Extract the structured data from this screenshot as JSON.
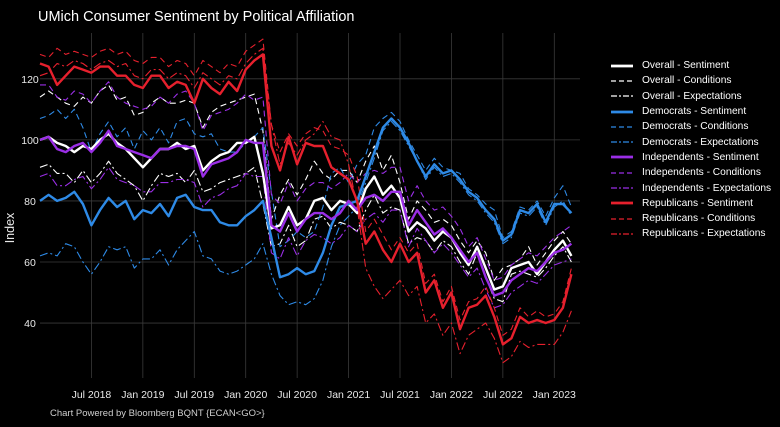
{
  "title": "UMich Consumer Sentiment by Political Affiliation",
  "footer": "Chart Powered by Bloomberg BQNT     {ECAN<GO>}",
  "chart_data": {
    "type": "line",
    "ylabel": "Index",
    "xlabel": "",
    "x_ticks": [
      "Jul 2018",
      "Jan 2019",
      "Jul 2019",
      "Jan 2020",
      "Jul 2020",
      "Jan 2021",
      "Jul 2021",
      "Jan 2022",
      "Jul 2022",
      "Jan 2023"
    ],
    "y_ticks": [
      40,
      60,
      80,
      100,
      120
    ],
    "ylim": [
      22,
      135
    ],
    "xlim": [
      "2018-01",
      "2023-04"
    ],
    "grid": true,
    "legend_position": "right",
    "x": [
      "2018-01",
      "2018-02",
      "2018-03",
      "2018-04",
      "2018-05",
      "2018-06",
      "2018-07",
      "2018-08",
      "2018-09",
      "2018-10",
      "2018-11",
      "2018-12",
      "2019-01",
      "2019-02",
      "2019-03",
      "2019-04",
      "2019-05",
      "2019-06",
      "2019-07",
      "2019-08",
      "2019-09",
      "2019-10",
      "2019-11",
      "2019-12",
      "2020-01",
      "2020-02",
      "2020-03",
      "2020-04",
      "2020-05",
      "2020-06",
      "2020-07",
      "2020-08",
      "2020-09",
      "2020-10",
      "2020-11",
      "2020-12",
      "2021-01",
      "2021-02",
      "2021-03",
      "2021-04",
      "2021-05",
      "2021-06",
      "2021-07",
      "2021-08",
      "2021-09",
      "2021-10",
      "2021-11",
      "2021-12",
      "2022-01",
      "2022-02",
      "2022-03",
      "2022-04",
      "2022-05",
      "2022-06",
      "2022-07",
      "2022-08",
      "2022-09",
      "2022-10",
      "2022-11",
      "2022-12",
      "2023-01",
      "2023-02",
      "2023-03"
    ],
    "series": [
      {
        "name": "Overall - Sentiment",
        "color": "#ffffff",
        "dash": "solid",
        "width": 2.4,
        "values": [
          100,
          101,
          99,
          98,
          96,
          98,
          97,
          100,
          102,
          99,
          97,
          94,
          91,
          94,
          97,
          97,
          99,
          97,
          98,
          90,
          93,
          95,
          96,
          99,
          99,
          101,
          89,
          71,
          72,
          78,
          72,
          74,
          80,
          81,
          77,
          80,
          79,
          76,
          84,
          88,
          82,
          85,
          81,
          70,
          73,
          71,
          67,
          70,
          68,
          63,
          59,
          65,
          58,
          51,
          52,
          58,
          59,
          60,
          56,
          60,
          64,
          67,
          62
        ]
      },
      {
        "name": "Overall - Conditions",
        "color": "#ffffff",
        "dash": "6,4",
        "width": 1.1,
        "values": [
          114,
          116,
          114,
          112,
          111,
          114,
          112,
          116,
          118,
          113,
          114,
          108,
          109,
          112,
          114,
          112,
          112,
          113,
          112,
          104,
          109,
          111,
          112,
          113,
          114,
          115,
          103,
          74,
          82,
          87,
          82,
          87,
          93,
          89,
          87,
          90,
          90,
          86,
          93,
          98,
          90,
          95,
          86,
          74,
          80,
          77,
          73,
          74,
          72,
          67,
          63,
          67,
          63,
          54,
          58,
          59,
          61,
          65,
          59,
          63,
          67,
          70,
          66
        ]
      },
      {
        "name": "Overall - Expectations",
        "color": "#ffffff",
        "dash": "8,3,2,3",
        "width": 1.1,
        "values": [
          91,
          92,
          89,
          89,
          86,
          90,
          86,
          89,
          93,
          89,
          87,
          85,
          80,
          85,
          89,
          88,
          89,
          86,
          90,
          83,
          84,
          86,
          87,
          88,
          89,
          91,
          79,
          65,
          66,
          72,
          65,
          67,
          74,
          75,
          71,
          73,
          72,
          70,
          77,
          82,
          76,
          78,
          77,
          66,
          68,
          67,
          63,
          67,
          65,
          60,
          56,
          63,
          55,
          48,
          47,
          56,
          57,
          56,
          55,
          58,
          62,
          65,
          60
        ]
      },
      {
        "name": "Democrats - Sentiment",
        "color": "#2e8ae6",
        "dash": "solid",
        "width": 2.4,
        "values": [
          80,
          82,
          80,
          81,
          83,
          79,
          72,
          77,
          81,
          78,
          80,
          74,
          77,
          76,
          79,
          75,
          81,
          82,
          78,
          77,
          77,
          73,
          72,
          72,
          75,
          77,
          80,
          68,
          55,
          56,
          58,
          56,
          57,
          63,
          72,
          78,
          79,
          80,
          88,
          96,
          104,
          107,
          104,
          99,
          93,
          88,
          92,
          89,
          90,
          87,
          83,
          81,
          77,
          74,
          67,
          69,
          77,
          76,
          79,
          73,
          79,
          79,
          76
        ]
      },
      {
        "name": "Democrats - Conditions",
        "color": "#2e8ae6",
        "dash": "6,4",
        "width": 1.1,
        "values": [
          107,
          108,
          110,
          107,
          110,
          104,
          96,
          102,
          106,
          101,
          104,
          97,
          103,
          100,
          104,
          99,
          106,
          107,
          102,
          101,
          102,
          97,
          96,
          96,
          99,
          101,
          104,
          83,
          65,
          67,
          70,
          68,
          70,
          78,
          89,
          91,
          86,
          92,
          95,
          104,
          107,
          109,
          106,
          100,
          95,
          90,
          94,
          91,
          90,
          89,
          84,
          82,
          79,
          77,
          68,
          70,
          78,
          77,
          80,
          75,
          81,
          85,
          78
        ]
      },
      {
        "name": "Democrats - Expectations",
        "color": "#2e8ae6",
        "dash": "8,3,2,3",
        "width": 1.1,
        "values": [
          62,
          63,
          62,
          66,
          65,
          60,
          56,
          60,
          65,
          64,
          65,
          58,
          61,
          61,
          64,
          59,
          64,
          67,
          70,
          62,
          61,
          57,
          56,
          57,
          59,
          61,
          66,
          56,
          49,
          46,
          47,
          46,
          48,
          54,
          65,
          72,
          75,
          78,
          86,
          94,
          103,
          106,
          103,
          98,
          93,
          87,
          91,
          88,
          89,
          86,
          82,
          80,
          76,
          73,
          66,
          68,
          76,
          75,
          78,
          72,
          78,
          80,
          75
        ]
      },
      {
        "name": "Independents - Sentiment",
        "color": "#9a2ee6",
        "dash": "solid",
        "width": 2.4,
        "values": [
          100,
          101,
          97,
          96,
          98,
          99,
          96,
          99,
          103,
          98,
          97,
          96,
          95,
          94,
          97,
          97,
          98,
          98,
          97,
          88,
          92,
          93,
          94,
          96,
          100,
          99,
          99,
          72,
          70,
          76,
          70,
          74,
          76,
          76,
          74,
          76,
          80,
          77,
          81,
          82,
          80,
          83,
          83,
          72,
          77,
          73,
          69,
          71,
          68,
          64,
          60,
          63,
          55,
          49,
          50,
          54,
          56,
          58,
          57,
          60,
          63,
          64,
          66
        ]
      },
      {
        "name": "Independents - Conditions",
        "color": "#9a2ee6",
        "dash": "6,4",
        "width": 1.1,
        "values": [
          118,
          118,
          114,
          113,
          116,
          115,
          112,
          116,
          119,
          114,
          112,
          111,
          110,
          111,
          114,
          112,
          115,
          116,
          112,
          103,
          108,
          109,
          110,
          112,
          115,
          113,
          114,
          82,
          79,
          86,
          80,
          84,
          86,
          86,
          84,
          86,
          89,
          86,
          89,
          90,
          89,
          91,
          91,
          80,
          85,
          80,
          77,
          78,
          75,
          71,
          65,
          68,
          61,
          54,
          55,
          59,
          61,
          63,
          62,
          65,
          68,
          70,
          72
        ]
      },
      {
        "name": "Independents - Expectations",
        "color": "#9a2ee6",
        "dash": "8,3,2,3",
        "width": 1.1,
        "values": [
          88,
          89,
          85,
          85,
          87,
          88,
          84,
          87,
          91,
          87,
          86,
          85,
          83,
          83,
          86,
          86,
          87,
          87,
          86,
          78,
          81,
          82,
          84,
          85,
          89,
          88,
          88,
          63,
          61,
          68,
          62,
          67,
          69,
          68,
          66,
          68,
          72,
          70,
          74,
          76,
          73,
          77,
          77,
          65,
          71,
          67,
          63,
          66,
          63,
          59,
          55,
          58,
          51,
          45,
          46,
          50,
          52,
          54,
          53,
          56,
          59,
          60,
          61
        ]
      },
      {
        "name": "Republicans - Sentiment",
        "color": "#e6202d",
        "dash": "solid",
        "width": 2.4,
        "values": [
          125,
          124,
          118,
          121,
          124,
          123,
          122,
          124,
          124,
          121,
          121,
          118,
          117,
          121,
          121,
          117,
          119,
          118,
          112,
          120,
          117,
          115,
          119,
          116,
          123,
          126,
          128,
          98,
          90,
          101,
          92,
          99,
          98,
          98,
          91,
          89,
          87,
          80,
          66,
          70,
          64,
          60,
          66,
          60,
          63,
          50,
          54,
          45,
          50,
          38,
          45,
          46,
          49,
          42,
          33,
          35,
          42,
          40,
          41,
          40,
          41,
          45,
          56
        ]
      },
      {
        "name": "Republicans - Conditions",
        "color": "#e6202d",
        "dash": "6,4",
        "width": 1.1,
        "values": [
          128,
          127,
          130,
          128,
          129,
          128,
          127,
          129,
          130,
          128,
          129,
          126,
          125,
          127,
          127,
          124,
          126,
          125,
          121,
          126,
          124,
          122,
          125,
          124,
          129,
          131,
          133,
          105,
          96,
          102,
          98,
          102,
          104,
          103,
          98,
          97,
          95,
          88,
          70,
          74,
          69,
          64,
          68,
          63,
          66,
          53,
          56,
          47,
          52,
          41,
          47,
          48,
          52,
          45,
          36,
          38,
          45,
          42,
          44,
          42,
          43,
          47,
          58
        ]
      },
      {
        "name": "Republicans - Expectations",
        "color": "#e6202d",
        "dash": "8,3,2,3",
        "width": 1.1,
        "values": [
          121,
          122,
          125,
          124,
          126,
          125,
          123,
          125,
          126,
          124,
          125,
          121,
          120,
          123,
          123,
          120,
          122,
          121,
          117,
          122,
          120,
          118,
          121,
          120,
          125,
          128,
          130,
          105,
          92,
          99,
          95,
          100,
          102,
          106,
          101,
          100,
          92,
          78,
          58,
          52,
          48,
          51,
          54,
          49,
          52,
          40,
          43,
          36,
          40,
          30,
          36,
          38,
          40,
          35,
          27,
          29,
          34,
          32,
          33,
          33,
          33,
          37,
          44
        ]
      }
    ]
  }
}
